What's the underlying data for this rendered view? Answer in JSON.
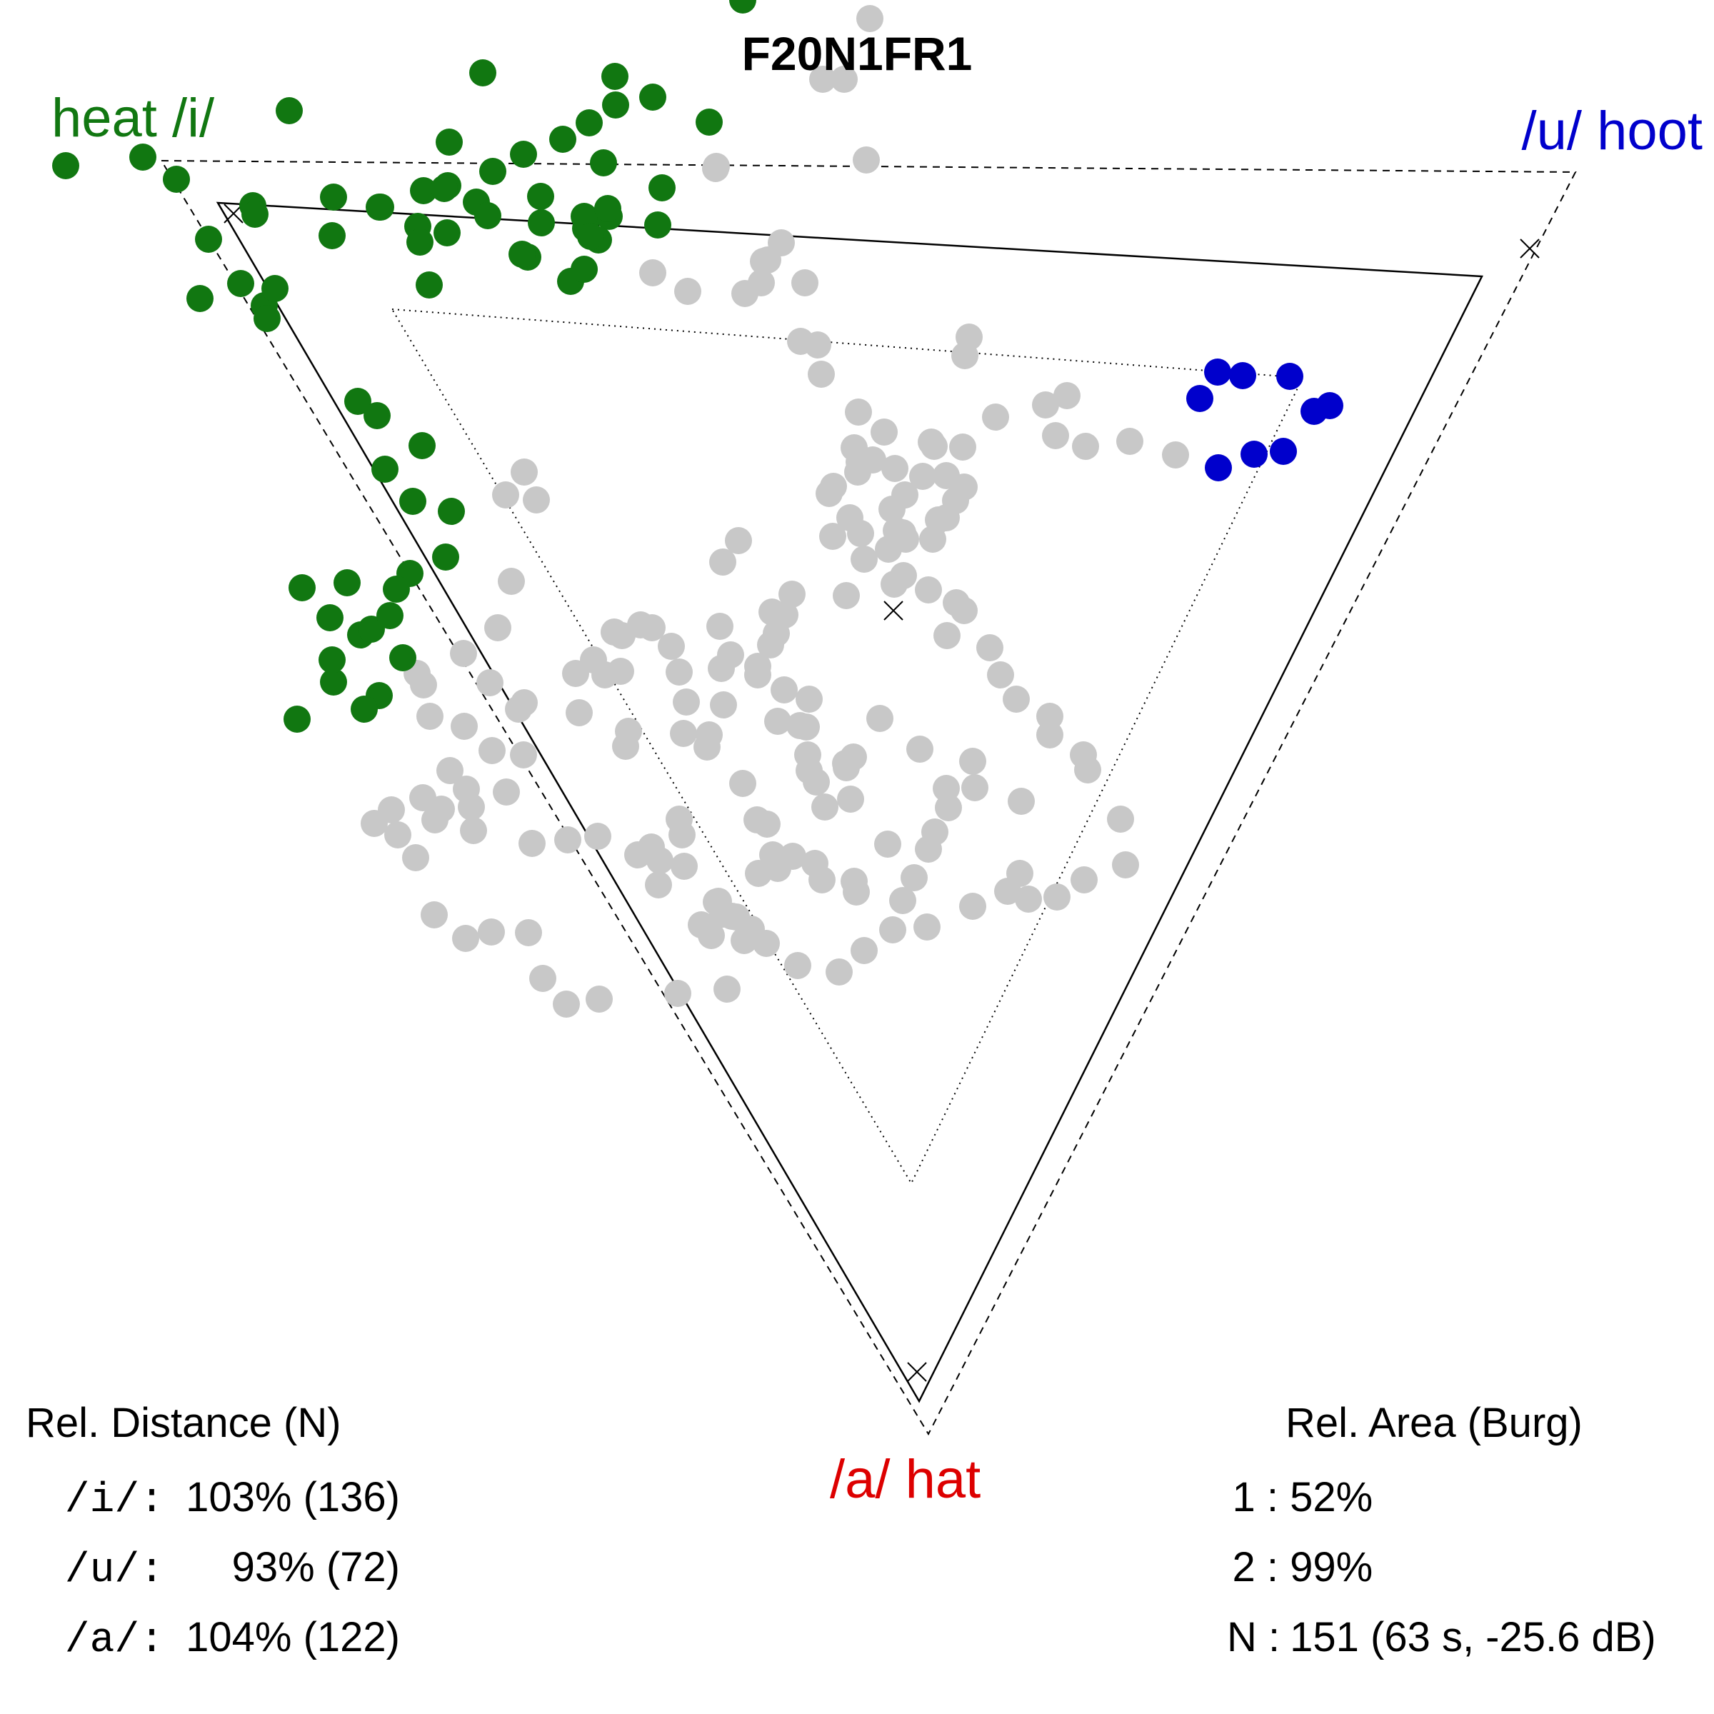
{
  "chart_data": {
    "type": "scatter",
    "title": "F20N1FR1",
    "corners": {
      "i": {
        "phoneme": "/i/",
        "word": "heat",
        "label": "heat /i/",
        "color": "#117711"
      },
      "u": {
        "phoneme": "/u/",
        "word": "hoot",
        "label": "/u/ hoot",
        "color": "#0000cc"
      },
      "a": {
        "phoneme": "/a/",
        "word": "hat",
        "label": "/a/ hat",
        "color": "#dd0000"
      }
    },
    "neutral_color": "#c8c8c8",
    "series": [
      {
        "category": "i",
        "color": "#117711",
        "points": [
          [
            92,
            232
          ],
          [
            200,
            220
          ],
          [
            247,
            251
          ],
          [
            405,
            155
          ],
          [
            676,
            102
          ],
          [
            861,
            107
          ],
          [
            862,
            147
          ],
          [
            914,
            136
          ],
          [
            1040,
            0
          ],
          [
            1218,
            26
          ],
          [
            1152,
            111
          ],
          [
            1182,
            111
          ],
          [
            993,
            171
          ],
          [
            1003,
            233
          ],
          [
            1213,
            224
          ],
          [
            354,
            288
          ],
          [
            292,
            335
          ],
          [
            357,
            300
          ],
          [
            467,
            276
          ],
          [
            531,
            290
          ],
          [
            593,
            267
          ],
          [
            627,
            260
          ],
          [
            667,
            283
          ],
          [
            733,
            216
          ],
          [
            788,
            195
          ],
          [
            825,
            172
          ],
          [
            845,
            228
          ],
          [
            629,
            199
          ],
          [
            690,
            240
          ],
          [
            757,
            275
          ],
          [
            683,
            302
          ],
          [
            758,
            312
          ],
          [
            820,
            320
          ],
          [
            853,
            303
          ],
          [
            921,
            315
          ],
          [
            927,
            263
          ],
          [
            818,
            303
          ],
          [
            838,
            336
          ],
          [
            851,
            292
          ],
          [
            1002,
            236
          ],
          [
            1075,
            364
          ],
          [
            1094,
            340
          ],
          [
            1069,
            366
          ],
          [
            280,
            418
          ],
          [
            370,
            428
          ],
          [
            337,
            397
          ],
          [
            385,
            404
          ],
          [
            374,
            446
          ],
          [
            465,
            330
          ],
          [
            533,
            290
          ],
          [
            585,
            317
          ],
          [
            622,
            264
          ],
          [
            588,
            339
          ],
          [
            626,
            326
          ],
          [
            601,
            399
          ],
          [
            739,
            360
          ],
          [
            731,
            356
          ],
          [
            799,
            394
          ],
          [
            827,
            331
          ],
          [
            818,
            377
          ],
          [
            914,
            382
          ],
          [
            1066,
            396
          ],
          [
            963,
            408
          ],
          [
            1043,
            411
          ],
          [
            1127,
            396
          ],
          [
            1121,
            478
          ],
          [
            1145,
            483
          ],
          [
            1150,
            524
          ],
          [
            1357,
            472
          ],
          [
            1351,
            498
          ],
          [
            1202,
            577
          ],
          [
            1350,
            682
          ],
          [
            1338,
            701
          ],
          [
            1314,
            728
          ],
          [
            1268,
            755
          ],
          [
            1325,
            666
          ],
          [
            1253,
            656
          ],
          [
            1238,
            605
          ],
          [
            1222,
            644
          ],
          [
            1304,
            619
          ],
          [
            1267,
            693
          ],
          [
            1264,
            746
          ],
          [
            1255,
            743
          ],
          [
            1190,
            725
          ],
          [
            1252,
            818
          ],
          [
            1012,
            787
          ],
          [
            1034,
            757
          ],
          [
            1166,
            751
          ],
          [
            1167,
            681
          ],
          [
            1201,
            661
          ],
          [
            1196,
            627
          ],
          [
            1203,
            647
          ],
          [
            1161,
            691
          ],
          [
            1205,
            747
          ],
          [
            1210,
            783
          ],
          [
            1308,
            625
          ],
          [
            1325,
            725
          ],
          [
            1306,
            755
          ],
          [
            1185,
            834
          ],
          [
            1109,
            832
          ],
          [
            1099,
            861
          ],
          [
            1023,
            917
          ],
          [
            957,
            1027
          ],
          [
            993,
            1029
          ],
          [
            1195,
            1060
          ],
          [
            1185,
            1075
          ],
          [
            1129,
            1018
          ],
          [
            951,
            1147
          ],
          [
            1040,
            1097
          ],
          [
            1060,
            1148
          ],
          [
            1074,
            1154
          ],
          [
            1110,
            1199
          ],
          [
            1082,
            1197
          ],
          [
            1006,
            1262
          ],
          [
            1031,
            1284
          ],
          [
            996,
            1310
          ],
          [
            982,
            1295
          ],
          [
            922,
            1239
          ],
          [
            924,
            1205
          ],
          [
            955,
            1169
          ],
          [
            876,
            1045
          ],
          [
            880,
            1024
          ],
          [
            811,
            998
          ],
          [
            831,
            924
          ],
          [
            847,
            945
          ],
          [
            871,
            890
          ],
          [
            860,
            885
          ],
          [
            734,
            984
          ],
          [
            709,
            1109
          ],
          [
            726,
            993
          ],
          [
            733,
            1057
          ],
          [
            686,
            956
          ],
          [
            649,
            915
          ],
          [
            584,
            943
          ],
          [
            574,
            803
          ],
          [
            555,
            825
          ],
          [
            624,
            780
          ],
          [
            578,
            702
          ],
          [
            539,
            657
          ],
          [
            501,
            562
          ],
          [
            528,
            582
          ],
          [
            591,
            624
          ],
          [
            734,
            661
          ],
          [
            751,
            700
          ],
          [
            708,
            693
          ],
          [
            632,
            716
          ],
          [
            716,
            814
          ],
          [
            697,
            879
          ],
          [
            806,
            943
          ],
          [
            869,
            940
          ],
          [
            897,
            875
          ],
          [
            913,
            879
          ],
          [
            940,
            905
          ],
          [
            951,
            941
          ],
          [
            1008,
            877
          ],
          [
            1010,
            936
          ],
          [
            1013,
            987
          ],
          [
            1079,
            903
          ],
          [
            1081,
            857
          ],
          [
            1087,
            887
          ],
          [
            1061,
            933
          ],
          [
            961,
            983
          ],
          [
            1061,
            945
          ],
          [
            1098,
            966
          ],
          [
            990,
            1046
          ],
          [
            1089,
            1010
          ],
          [
            1133,
            979
          ],
          [
            1120,
            1016
          ],
          [
            1131,
            1057
          ],
          [
            1133,
            1079
          ],
          [
            1184,
            1069
          ],
          [
            1143,
            1095
          ],
          [
            1155,
            1130
          ],
          [
            1191,
            1119
          ],
          [
            1232,
            1006
          ],
          [
            1288,
            1049
          ],
          [
            1362,
            1066
          ],
          [
            1365,
            1103
          ],
          [
            1430,
            1122
          ],
          [
            1428,
            1223
          ],
          [
            1411,
            1248
          ],
          [
            1325,
            1104
          ],
          [
            1328,
            1131
          ],
          [
            1309,
            1165
          ],
          [
            1243,
            1182
          ],
          [
            1300,
            1189
          ],
          [
            1280,
            1229
          ],
          [
            1264,
            1261
          ],
          [
            1199,
            1249
          ],
          [
            1196,
            1234
          ],
          [
            1151,
            1232
          ],
          [
            1141,
            1209
          ],
          [
            1089,
            1216
          ],
          [
            1062,
            1223
          ],
          [
            1025,
            1283
          ],
          [
            1012,
            1280
          ],
          [
            1052,
            1301
          ],
          [
            1073,
            1321
          ],
          [
            1018,
            1385
          ],
          [
            949,
            1391
          ],
          [
            839,
            1399
          ],
          [
            793,
            1406
          ],
          [
            760,
            1370
          ],
          [
            740,
            1306
          ],
          [
            688,
            1305
          ],
          [
            652,
            1314
          ],
          [
            608,
            1281
          ],
          [
            582,
            1201
          ],
          [
            618,
            1133
          ],
          [
            653,
            1105
          ],
          [
            602,
            1003
          ],
          [
            531,
            974
          ],
          [
            510,
            993
          ],
          [
            467,
            955
          ],
          [
            416,
            1007
          ],
          [
            505,
            889
          ],
          [
            520,
            881
          ],
          [
            546,
            862
          ],
          [
            486,
            816
          ],
          [
            423,
            823
          ],
          [
            462,
            865
          ],
          [
            465,
            924
          ],
          [
            564,
            921
          ],
          [
            593,
            959
          ],
          [
            650,
            1017
          ],
          [
            689,
            1051
          ],
          [
            630,
            1079
          ],
          [
            592,
            1117
          ],
          [
            548,
            1134
          ],
          [
            524,
            1153
          ],
          [
            557,
            1169
          ],
          [
            609,
            1148
          ],
          [
            660,
            1130
          ],
          [
            663,
            1163
          ],
          [
            745,
            1181
          ],
          [
            795,
            1176
          ],
          [
            837,
            1171
          ],
          [
            893,
            1197
          ],
          [
            912,
            1186
          ],
          [
            958,
            1213
          ],
          [
            1003,
            1263
          ],
          [
            1042,
            1317
          ],
          [
            1117,
            1352
          ],
          [
            1175,
            1361
          ],
          [
            1210,
            1331
          ],
          [
            1250,
            1302
          ],
          [
            1298,
            1298
          ],
          [
            1362,
            1269
          ],
          [
            1440,
            1259
          ],
          [
            1480,
            1256
          ],
          [
            1518,
            1232
          ],
          [
            1576,
            1211
          ],
          [
            1569,
            1147
          ],
          [
            1523,
            1078
          ],
          [
            1517,
            1057
          ],
          [
            1470,
            1029
          ],
          [
            1470,
            1003
          ],
          [
            1423,
            979
          ],
          [
            1401,
            945
          ],
          [
            1386,
            907
          ],
          [
            1326,
            890
          ],
          [
            1350,
            855
          ],
          [
            1339,
            844
          ],
          [
            1300,
            826
          ],
          [
            1265,
            806
          ],
          [
            1244,
            769
          ],
          [
            1249,
            713
          ],
          [
            1292,
            667
          ],
          [
            1348,
            626
          ],
          [
            1394,
            584
          ],
          [
            1464,
            567
          ],
          [
            1494,
            554
          ],
          [
            1478,
            610
          ],
          [
            1520,
            625
          ],
          [
            1582,
            618
          ],
          [
            1646,
            637
          ],
          [
            1706,
            655
          ],
          [
            1756,
            636
          ],
          [
            1797,
            632
          ],
          [
            1840,
            576
          ],
          [
            1862,
            568
          ],
          [
            1806,
            527
          ],
          [
            1740,
            526
          ],
          [
            1705,
            521
          ],
          [
            1680,
            558
          ]
        ]
      }
    ],
    "stats": {
      "distance": {
        "title": "Rel. Distance (N)",
        "rows": [
          {
            "key": "/i/:",
            "value": "103% (136)"
          },
          {
            "key": "/u/:",
            "value": "93% (72)"
          },
          {
            "key": "/a/:",
            "value": "104% (122)"
          }
        ]
      },
      "area": {
        "title": "Rel. Area (Burg)",
        "rows": [
          {
            "key": "1 :",
            "value": "52%"
          },
          {
            "key": "2 :",
            "value": "99%"
          },
          {
            "key": "N :",
            "value": "151 (63 s, -25.6 dB)"
          }
        ]
      }
    }
  }
}
